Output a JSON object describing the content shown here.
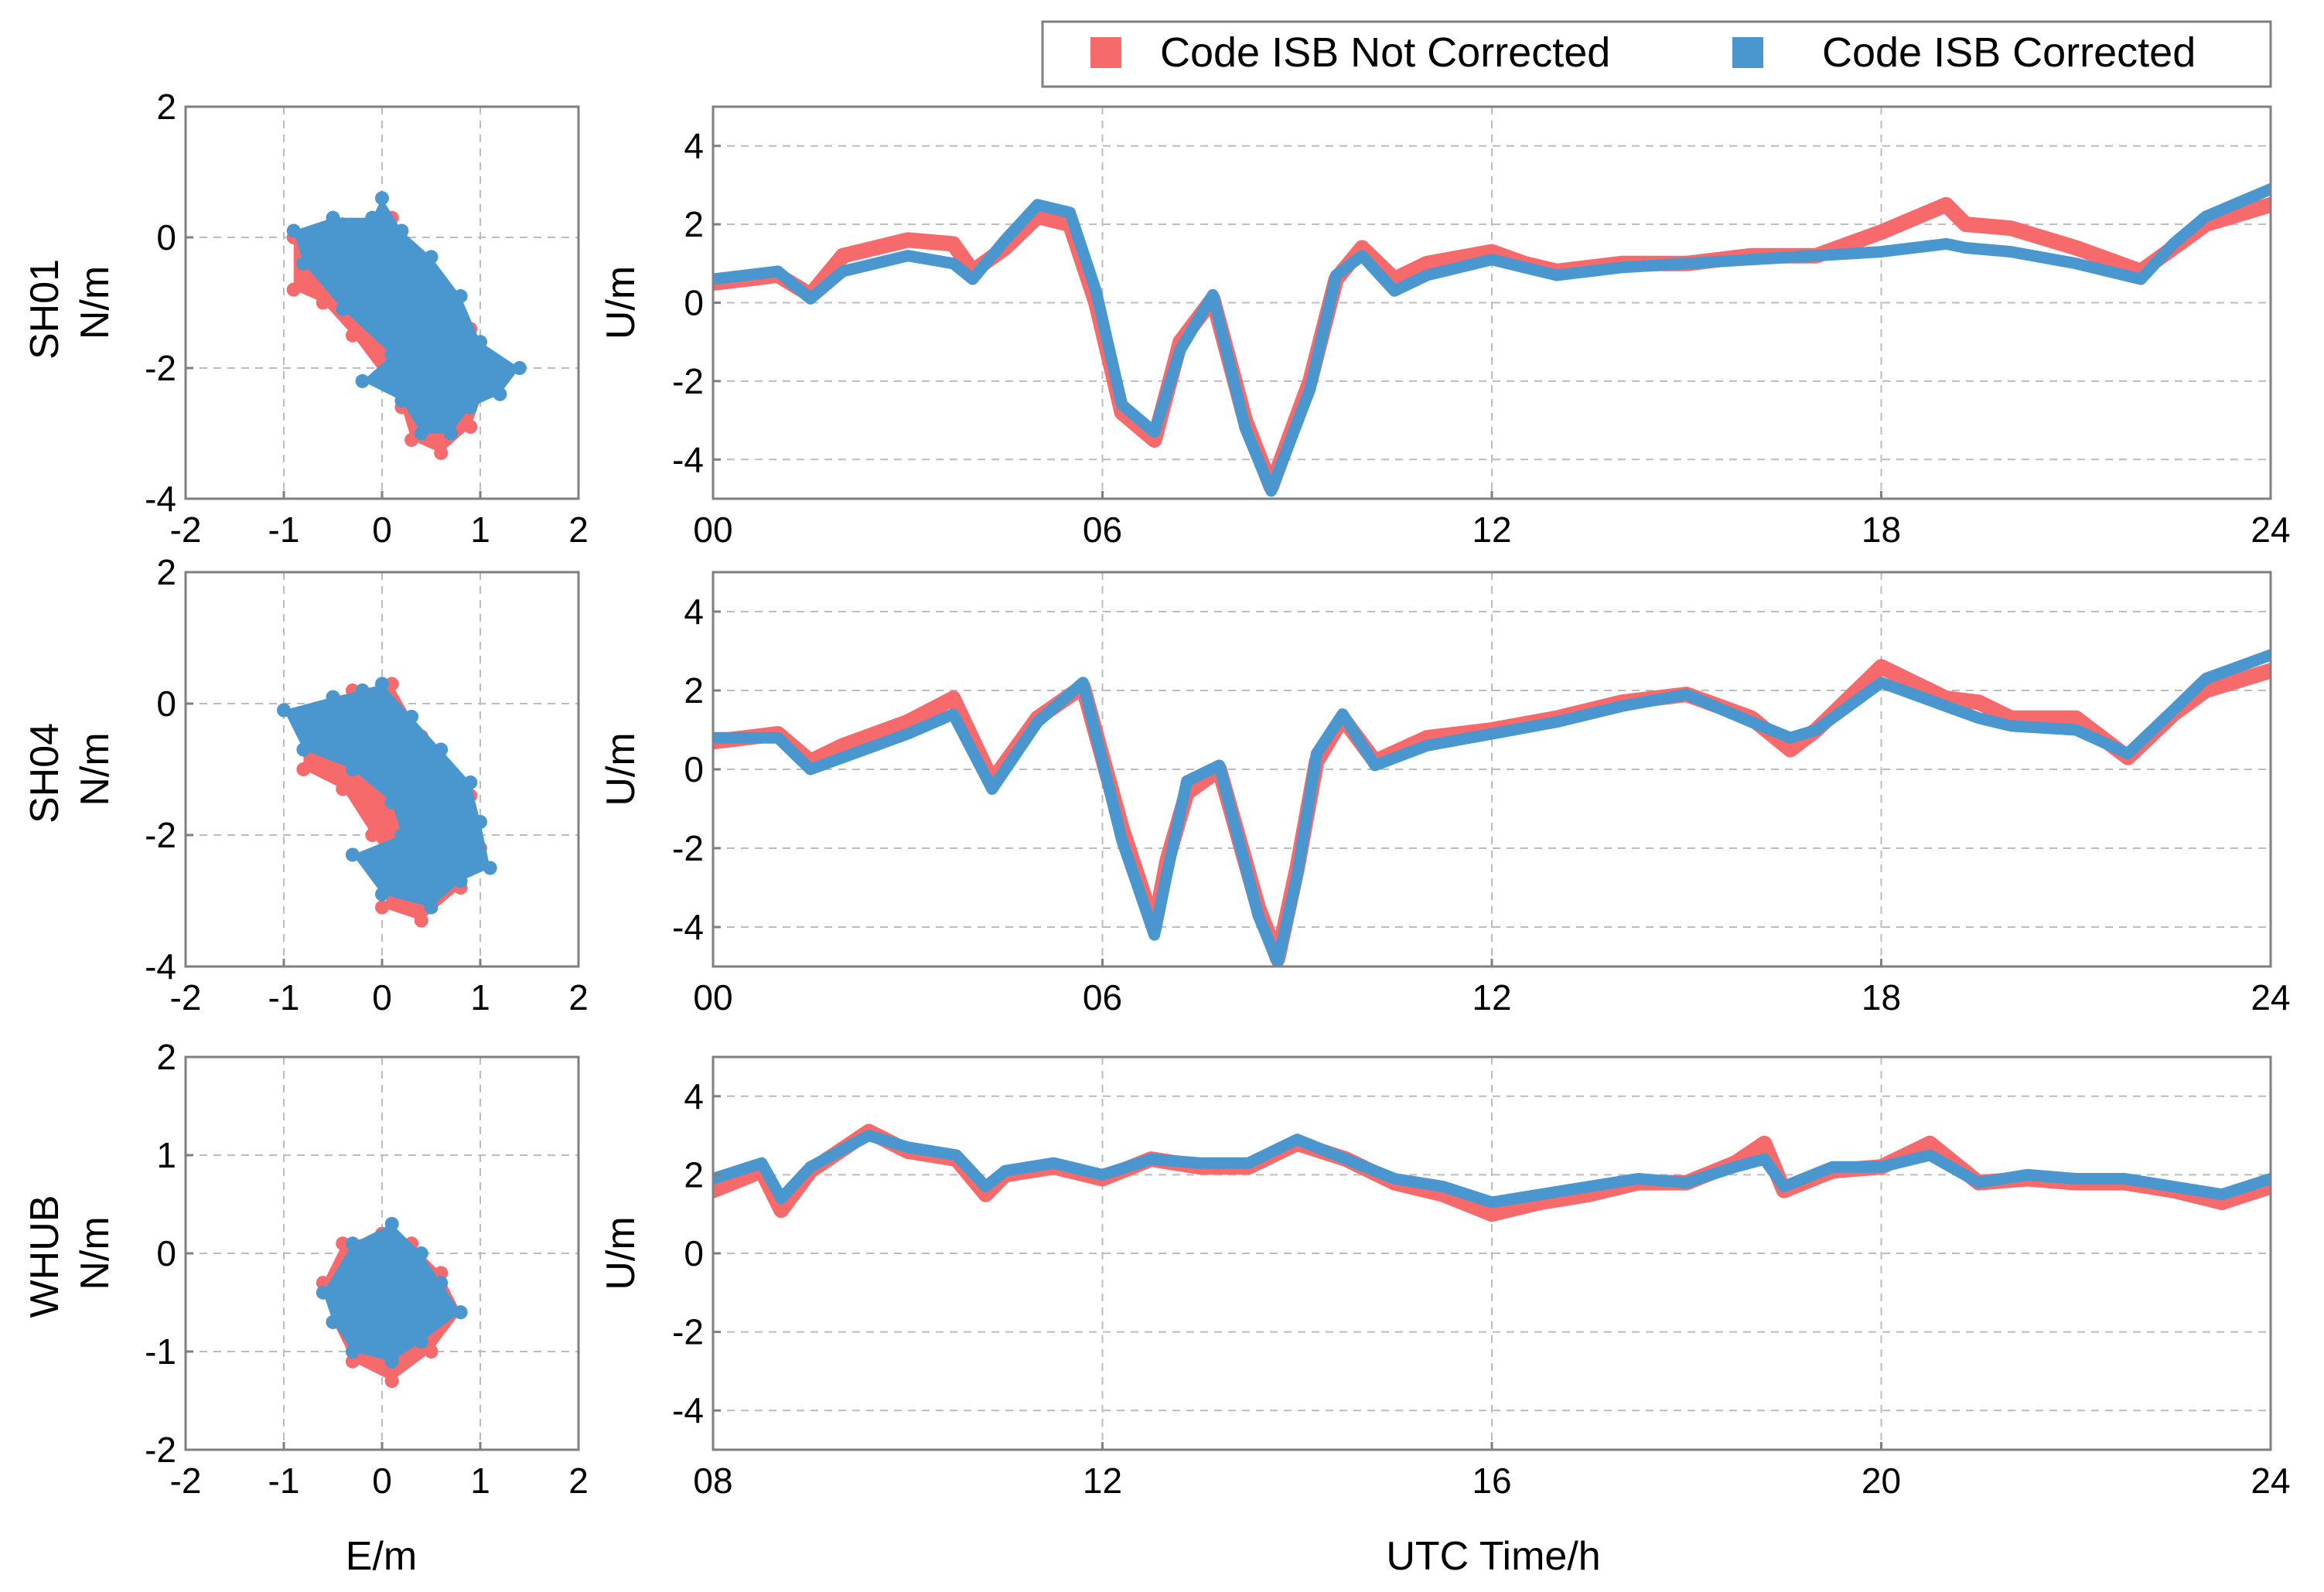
{
  "figure": {
    "legend": {
      "entries": [
        {
          "label": "Code ISB Not Corrected",
          "color": "#f76a6c"
        },
        {
          "label": "Code ISB Corrected",
          "color": "#4a97cf"
        }
      ]
    },
    "common_xlabel_horizontal": "E/m",
    "common_xlabel_time": "UTC Time/h"
  },
  "chart_data": [
    {
      "type": "scatter",
      "station": "SH01",
      "xlabel": "E/m",
      "ylabel": "N/m",
      "xlim": [
        -2,
        2
      ],
      "ylim": [
        -4,
        2
      ],
      "xticks": [
        "-2",
        "-1",
        "0",
        "1",
        "2"
      ],
      "yticks": [
        "-4",
        "-2",
        "0",
        "2"
      ],
      "series": [
        {
          "name": "Code ISB Not Corrected",
          "outline": [
            [
              -0.9,
              0.0
            ],
            [
              -0.4,
              0.2
            ],
            [
              0.1,
              0.3
            ],
            [
              0.5,
              -0.5
            ],
            [
              0.9,
              -1.4
            ],
            [
              1.1,
              -2.1
            ],
            [
              0.9,
              -2.9
            ],
            [
              0.6,
              -3.3
            ],
            [
              0.3,
              -3.1
            ],
            [
              0.2,
              -2.6
            ],
            [
              0.0,
              -2.1
            ],
            [
              -0.3,
              -1.5
            ],
            [
              -0.6,
              -1.0
            ],
            [
              -0.9,
              -0.8
            ]
          ]
        },
        {
          "name": "Code ISB Corrected",
          "outline": [
            [
              -0.9,
              0.1
            ],
            [
              -0.5,
              0.3
            ],
            [
              -0.1,
              0.3
            ],
            [
              0.0,
              0.6
            ],
            [
              0.2,
              0.1
            ],
            [
              0.5,
              -0.3
            ],
            [
              0.8,
              -0.9
            ],
            [
              1.0,
              -1.6
            ],
            [
              1.4,
              -2.0
            ],
            [
              1.2,
              -2.4
            ],
            [
              0.9,
              -2.6
            ],
            [
              0.7,
              -3.0
            ],
            [
              0.4,
              -3.0
            ],
            [
              0.2,
              -2.5
            ],
            [
              -0.2,
              -2.2
            ],
            [
              0.1,
              -1.8
            ],
            [
              -0.4,
              -1.1
            ],
            [
              -0.8,
              -0.4
            ]
          ]
        }
      ]
    },
    {
      "type": "line",
      "station": "SH01",
      "xlabel": "UTC Time/h",
      "ylabel": "U/m",
      "xlim": [
        0,
        24
      ],
      "ylim": [
        -5,
        5
      ],
      "xticks": [
        "00",
        "06",
        "12",
        "18",
        "24"
      ],
      "yticks": [
        "-4",
        "-2",
        "0",
        "2",
        "4"
      ],
      "series": [
        {
          "name": "Code ISB Not Corrected",
          "x": [
            0,
            1,
            1.5,
            2,
            3,
            3.7,
            4,
            4.5,
            5,
            5.5,
            5.9,
            6.3,
            6.8,
            7.2,
            7.7,
            8.2,
            8.6,
            9.2,
            9.6,
            10,
            10.5,
            11,
            12,
            12.5,
            13,
            14,
            15,
            16,
            17,
            18,
            19,
            19.3,
            20,
            21,
            22,
            22.5,
            23,
            24
          ],
          "y": [
            0.5,
            0.7,
            0.2,
            1.2,
            1.6,
            1.5,
            0.8,
            1.4,
            2.2,
            2.0,
            0.0,
            -2.8,
            -3.5,
            -1.0,
            0.1,
            -3.0,
            -4.7,
            -2.0,
            0.6,
            1.4,
            0.6,
            1.0,
            1.3,
            1.0,
            0.8,
            1.0,
            1.0,
            1.2,
            1.2,
            1.8,
            2.5,
            2.0,
            1.9,
            1.4,
            0.8,
            1.4,
            2.0,
            2.5
          ]
        },
        {
          "name": "Code ISB Corrected",
          "x": [
            0,
            1,
            1.5,
            2,
            3,
            3.7,
            4,
            4.5,
            5,
            5.5,
            5.9,
            6.3,
            6.8,
            7.2,
            7.7,
            8.2,
            8.6,
            9.2,
            9.6,
            10,
            10.5,
            11,
            12,
            12.5,
            13,
            14,
            15,
            16,
            17,
            18,
            19,
            19.3,
            20,
            21,
            22,
            22.5,
            23,
            24
          ],
          "y": [
            0.6,
            0.8,
            0.1,
            0.8,
            1.2,
            1.0,
            0.6,
            1.6,
            2.5,
            2.3,
            0.3,
            -2.6,
            -3.3,
            -1.2,
            0.2,
            -3.2,
            -4.8,
            -2.2,
            0.7,
            1.2,
            0.3,
            0.7,
            1.1,
            0.9,
            0.7,
            0.9,
            1.0,
            1.1,
            1.2,
            1.3,
            1.5,
            1.4,
            1.3,
            1.0,
            0.6,
            1.5,
            2.2,
            2.9
          ]
        }
      ]
    },
    {
      "type": "scatter",
      "station": "SH04",
      "xlabel": "E/m",
      "ylabel": "N/m",
      "xlim": [
        -2,
        2
      ],
      "ylim": [
        -4,
        2
      ],
      "xticks": [
        "-2",
        "-1",
        "0",
        "1",
        "2"
      ],
      "yticks": [
        "-4",
        "-2",
        "0",
        "2"
      ],
      "series": [
        {
          "name": "Code ISB Not Corrected",
          "outline": [
            [
              -0.8,
              -0.3
            ],
            [
              -0.3,
              0.2
            ],
            [
              0.1,
              0.3
            ],
            [
              0.4,
              -0.5
            ],
            [
              0.9,
              -1.4
            ],
            [
              1.0,
              -2.2
            ],
            [
              0.8,
              -2.8
            ],
            [
              0.4,
              -3.3
            ],
            [
              0.0,
              -3.1
            ],
            [
              0.2,
              -2.6
            ],
            [
              -0.1,
              -2.0
            ],
            [
              -0.4,
              -1.3
            ],
            [
              -0.8,
              -1.0
            ]
          ]
        },
        {
          "name": "Code ISB Corrected",
          "outline": [
            [
              -1.0,
              -0.1
            ],
            [
              -0.5,
              0.1
            ],
            [
              -0.2,
              0.2
            ],
            [
              0.0,
              0.3
            ],
            [
              0.3,
              -0.2
            ],
            [
              0.6,
              -0.7
            ],
            [
              0.9,
              -1.2
            ],
            [
              1.0,
              -1.8
            ],
            [
              1.1,
              -2.5
            ],
            [
              0.8,
              -2.7
            ],
            [
              0.5,
              -3.1
            ],
            [
              0.0,
              -2.9
            ],
            [
              -0.3,
              -2.3
            ],
            [
              0.2,
              -2.0
            ],
            [
              0.1,
              -1.5
            ],
            [
              -0.3,
              -1.0
            ],
            [
              -0.8,
              -0.7
            ]
          ]
        }
      ]
    },
    {
      "type": "line",
      "station": "SH04",
      "xlabel": "UTC Time/h",
      "ylabel": "U/m",
      "xlim": [
        0,
        24
      ],
      "ylim": [
        -5,
        5
      ],
      "xticks": [
        "00",
        "06",
        "12",
        "18",
        "24"
      ],
      "yticks": [
        "-4",
        "-2",
        "0",
        "2",
        "4"
      ],
      "series": [
        {
          "name": "Code ISB Not Corrected",
          "x": [
            0,
            1,
            1.5,
            2,
            3,
            3.7,
            4.3,
            5,
            5.7,
            6.3,
            6.8,
            7.0,
            7.3,
            7.8,
            8.4,
            8.7,
            9.0,
            9.3,
            9.7,
            10.2,
            11,
            12,
            13,
            14,
            15,
            16,
            16.6,
            17,
            18,
            19,
            19.5,
            20,
            21,
            21.8,
            22.5,
            23,
            24
          ],
          "y": [
            0.7,
            0.9,
            0.2,
            0.6,
            1.2,
            1.8,
            -0.3,
            1.3,
            2.1,
            -1.5,
            -4.0,
            -2.3,
            -0.6,
            0.0,
            -3.5,
            -4.8,
            -2.5,
            0.2,
            1.3,
            0.2,
            0.8,
            1.0,
            1.3,
            1.7,
            1.9,
            1.3,
            0.5,
            1.0,
            2.6,
            1.8,
            1.7,
            1.3,
            1.3,
            0.3,
            1.4,
            2.0,
            2.5
          ]
        },
        {
          "name": "Code ISB Corrected",
          "x": [
            0,
            1,
            1.5,
            2,
            3,
            3.7,
            4.3,
            5,
            5.7,
            6.3,
            6.8,
            7.0,
            7.3,
            7.8,
            8.4,
            8.7,
            9.0,
            9.3,
            9.7,
            10.2,
            11,
            12,
            13,
            14,
            15,
            16,
            16.6,
            17,
            18,
            19,
            19.5,
            20,
            21,
            21.8,
            22.5,
            23,
            24
          ],
          "y": [
            0.8,
            0.8,
            0.0,
            0.3,
            0.9,
            1.4,
            -0.5,
            1.2,
            2.2,
            -1.8,
            -4.2,
            -2.6,
            -0.3,
            0.1,
            -3.7,
            -4.9,
            -2.7,
            0.4,
            1.4,
            0.1,
            0.6,
            0.9,
            1.2,
            1.6,
            1.9,
            1.2,
            0.8,
            1.0,
            2.2,
            1.6,
            1.3,
            1.1,
            1.0,
            0.4,
            1.5,
            2.3,
            2.9
          ]
        }
      ]
    },
    {
      "type": "scatter",
      "station": "WHUB",
      "xlabel": "E/m",
      "ylabel": "N/m",
      "xlim": [
        -2,
        2
      ],
      "ylim": [
        -2,
        2
      ],
      "xticks": [
        "-2",
        "-1",
        "0",
        "1",
        "2"
      ],
      "yticks": [
        "-2",
        "-1",
        "0",
        "1",
        "2"
      ],
      "series": [
        {
          "name": "Code ISB Not Corrected",
          "outline": [
            [
              -0.6,
              -0.3
            ],
            [
              -0.4,
              0.1
            ],
            [
              0.0,
              0.2
            ],
            [
              0.3,
              0.1
            ],
            [
              0.6,
              -0.2
            ],
            [
              0.8,
              -0.6
            ],
            [
              0.5,
              -1.0
            ],
            [
              0.1,
              -1.3
            ],
            [
              -0.3,
              -1.1
            ],
            [
              -0.5,
              -0.7
            ]
          ]
        },
        {
          "name": "Code ISB Corrected",
          "outline": [
            [
              -0.6,
              -0.4
            ],
            [
              -0.3,
              0.1
            ],
            [
              0.1,
              0.3
            ],
            [
              0.4,
              0.0
            ],
            [
              0.6,
              -0.3
            ],
            [
              0.8,
              -0.6
            ],
            [
              0.4,
              -0.9
            ],
            [
              0.1,
              -1.1
            ],
            [
              -0.3,
              -1.0
            ],
            [
              -0.5,
              -0.7
            ]
          ]
        }
      ]
    },
    {
      "type": "line",
      "station": "WHUB",
      "xlabel": "UTC Time/h",
      "ylabel": "U/m",
      "xlim": [
        8,
        24
      ],
      "ylim": [
        -5,
        5
      ],
      "xticks": [
        "08",
        "12",
        "16",
        "20",
        "24"
      ],
      "yticks": [
        "-4",
        "-2",
        "0",
        "2",
        "4"
      ],
      "series": [
        {
          "name": "Code ISB Not Corrected",
          "x": [
            8,
            8.5,
            8.7,
            9,
            9.6,
            10,
            10.5,
            10.8,
            11,
            11.5,
            12,
            12.5,
            13,
            13.5,
            14,
            14.5,
            15,
            15.5,
            16,
            16.5,
            17,
            17.5,
            18,
            18.5,
            18.8,
            19,
            19.5,
            20,
            20.5,
            21,
            21.5,
            22,
            22.5,
            23,
            23.5,
            24
          ],
          "y": [
            1.6,
            2.1,
            1.1,
            2.1,
            3.1,
            2.6,
            2.4,
            1.5,
            2.0,
            2.2,
            1.9,
            2.4,
            2.2,
            2.2,
            2.8,
            2.4,
            1.8,
            1.5,
            1.0,
            1.3,
            1.5,
            1.8,
            1.8,
            2.3,
            2.8,
            1.6,
            2.1,
            2.2,
            2.8,
            1.8,
            1.9,
            1.8,
            1.8,
            1.6,
            1.3,
            1.7
          ]
        },
        {
          "name": "Code ISB Corrected",
          "x": [
            8,
            8.5,
            8.7,
            9,
            9.6,
            10,
            10.5,
            10.8,
            11,
            11.5,
            12,
            12.5,
            13,
            13.5,
            14,
            14.5,
            15,
            15.5,
            16,
            16.5,
            17,
            17.5,
            18,
            18.5,
            18.8,
            19,
            19.5,
            20,
            20.5,
            21,
            21.5,
            22,
            22.5,
            23,
            23.5,
            24
          ],
          "y": [
            1.9,
            2.3,
            1.4,
            2.2,
            3.0,
            2.7,
            2.5,
            1.7,
            2.1,
            2.3,
            2.0,
            2.4,
            2.3,
            2.3,
            2.9,
            2.4,
            1.9,
            1.7,
            1.3,
            1.5,
            1.7,
            1.9,
            1.8,
            2.2,
            2.4,
            1.7,
            2.2,
            2.2,
            2.5,
            1.8,
            2.0,
            1.9,
            1.9,
            1.7,
            1.5,
            1.9
          ]
        }
      ]
    }
  ]
}
